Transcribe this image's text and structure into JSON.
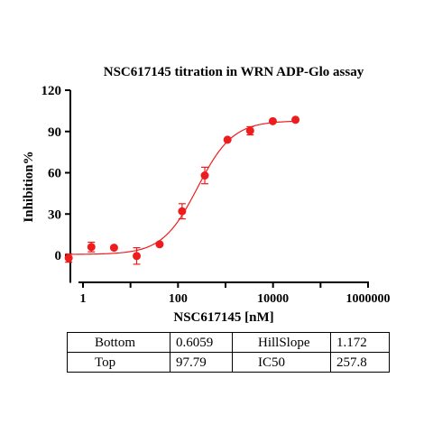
{
  "chart_data": {
    "type": "scatter",
    "title": "NSC617145 titration in WRN ADP-Glo assay",
    "xlabel": "NSC617145 [nM]",
    "ylabel": "Inhibition%",
    "x_scale": "log",
    "xlim": [
      0.3,
      1000000
    ],
    "ylim": [
      -20,
      120
    ],
    "x_ticks": [
      1,
      10,
      100,
      1000,
      10000,
      100000,
      1000000
    ],
    "x_tick_labels": [
      "1",
      "100",
      "10000",
      "1000000"
    ],
    "y_ticks": [
      0,
      30,
      60,
      90,
      120
    ],
    "y_tick_labels": [
      "0",
      "30",
      "60",
      "90",
      "120"
    ],
    "grid": false,
    "marker_color": "#ee1c1c",
    "curve_color": "#ee1c1c",
    "points": [
      {
        "x": 0.5,
        "y": -2,
        "err": 3
      },
      {
        "x": 1.5,
        "y": 6,
        "err": 3.5
      },
      {
        "x": 4.5,
        "y": 5.5,
        "err": 0
      },
      {
        "x": 13.5,
        "y": -0.5,
        "err": 6
      },
      {
        "x": 41,
        "y": 8,
        "err": 0
      },
      {
        "x": 122,
        "y": 32,
        "err": 5.5
      },
      {
        "x": 366,
        "y": 58,
        "err": 6
      },
      {
        "x": 1100,
        "y": 84,
        "err": 0
      },
      {
        "x": 3300,
        "y": 90.5,
        "err": 3
      },
      {
        "x": 9900,
        "y": 97.5,
        "err": 0
      },
      {
        "x": 29700,
        "y": 98.5,
        "err": 0
      }
    ],
    "fit": {
      "model": "4PL",
      "bottom": 0.6059,
      "top": 97.79,
      "hillslope": 1.172,
      "ic50": 257.8
    }
  },
  "params_table": [
    [
      {
        "k": "Bottom",
        "v": "0.6059"
      },
      {
        "k": "HillSlope",
        "v": "1.172"
      }
    ],
    [
      {
        "k": "Top",
        "v": "97.79"
      },
      {
        "k": "IC50",
        "v": "257.8"
      }
    ]
  ]
}
